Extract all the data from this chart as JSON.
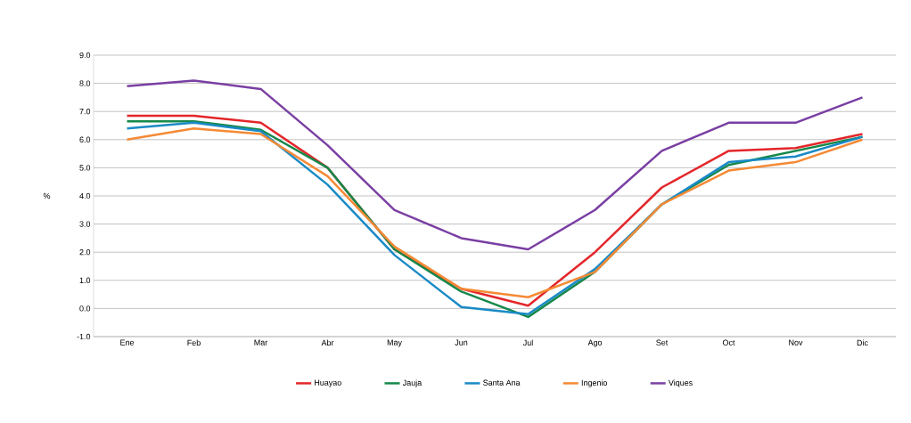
{
  "chart_data": {
    "type": "line",
    "ylabel": "%",
    "categories": [
      "Ene",
      "Feb",
      "Mar",
      "Abr",
      "May",
      "Jun",
      "Jul",
      "Ago",
      "Set",
      "Oct",
      "Nov",
      "Dic"
    ],
    "series": [
      {
        "name": "Huayao",
        "color": "#e3262a",
        "values": [
          6.85,
          6.85,
          6.6,
          5.0,
          2.1,
          0.7,
          0.1,
          2.0,
          4.3,
          5.6,
          5.7,
          6.2
        ]
      },
      {
        "name": "Jauja",
        "color": "#15884a",
        "values": [
          6.65,
          6.65,
          6.35,
          5.0,
          2.1,
          0.6,
          -0.3,
          1.3,
          3.7,
          5.1,
          5.6,
          6.1
        ]
      },
      {
        "name": "Santa Ana",
        "color": "#1a8ac6",
        "values": [
          6.4,
          6.6,
          6.3,
          4.4,
          1.9,
          0.05,
          -0.2,
          1.4,
          3.7,
          5.2,
          5.4,
          6.1
        ]
      },
      {
        "name": "Ingenio",
        "color": "#f58a35",
        "values": [
          6.0,
          6.4,
          6.2,
          4.7,
          2.2,
          0.7,
          0.4,
          1.3,
          3.7,
          4.9,
          5.2,
          6.0
        ]
      },
      {
        "name": "Viques",
        "color": "#7a3fa3",
        "values": [
          7.9,
          8.1,
          7.8,
          5.8,
          3.5,
          2.5,
          2.1,
          3.5,
          5.6,
          6.6,
          6.6,
          7.5
        ]
      }
    ],
    "ylim": [
      -1.0,
      9.0
    ],
    "yticks": [
      {
        "value": -1,
        "label": "-1.0"
      },
      {
        "value": 0,
        "label": "0.0"
      },
      {
        "value": 1,
        "label": "1.0"
      },
      {
        "value": 2,
        "label": "2.0"
      },
      {
        "value": 3,
        "label": "3.0"
      },
      {
        "value": 4,
        "label": "4.0"
      },
      {
        "value": 5,
        "label": "5.0"
      },
      {
        "value": 6,
        "label": "6.0"
      },
      {
        "value": 7,
        "label": "7.0"
      },
      {
        "value": 8,
        "label": "8.0"
      },
      {
        "value": 9,
        "label": "9.0"
      }
    ],
    "grid": "y",
    "legend": "bottom",
    "marker": "none",
    "line_style": "solid"
  }
}
